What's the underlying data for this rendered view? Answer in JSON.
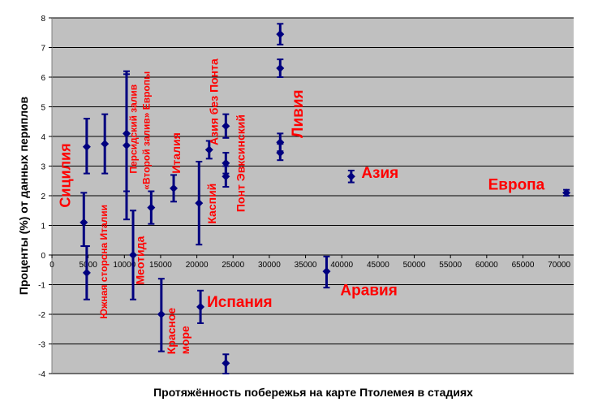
{
  "chart_data": {
    "type": "scatter",
    "title": "",
    "xlabel": "Протяжённость побережья на карте Птолемея в стадиях",
    "ylabel": "Проценты (%) от данных периплов",
    "xlim": [
      0,
      72000
    ],
    "ylim": [
      -4,
      8
    ],
    "x_ticks": [
      0,
      5000,
      10000,
      15000,
      20000,
      25000,
      30000,
      35000,
      40000,
      45000,
      50000,
      55000,
      60000,
      65000,
      70000
    ],
    "y_ticks": [
      -4,
      -3,
      -2,
      -1,
      0,
      1,
      2,
      3,
      4,
      5,
      6,
      7,
      8
    ],
    "grid": true,
    "background": "#c0c0c0",
    "gridline_color": "#000000",
    "series_color": "#00007f",
    "label_color": "#ff0000",
    "points": [
      {
        "x": 4400,
        "y": 1.1,
        "low": 0.3,
        "high": 2.1
      },
      {
        "x": 4800,
        "y": 3.65,
        "low": 2.75,
        "high": 4.6
      },
      {
        "x": 4800,
        "y": -0.6,
        "low": -1.5,
        "high": 0.3
      },
      {
        "x": 7300,
        "y": 3.75,
        "low": 2.75,
        "high": 4.75
      },
      {
        "x": 10300,
        "y": 4.1,
        "low": 2.15,
        "high": 6.1
      },
      {
        "x": 10300,
        "y": 3.7,
        "low": 1.2,
        "high": 6.2
      },
      {
        "x": 11200,
        "y": 0.0,
        "low": -1.5,
        "high": 1.5
      },
      {
        "x": 13700,
        "y": 1.6,
        "low": 1.05,
        "high": 2.15
      },
      {
        "x": 15100,
        "y": -2.0,
        "low": -3.25,
        "high": -0.8
      },
      {
        "x": 16800,
        "y": 2.25,
        "low": 1.8,
        "high": 2.7
      },
      {
        "x": 20300,
        "y": 1.75,
        "low": 0.35,
        "high": 3.15
      },
      {
        "x": 20500,
        "y": -1.75,
        "low": -2.3,
        "high": -1.2
      },
      {
        "x": 21700,
        "y": 3.55,
        "low": 3.25,
        "high": 3.85
      },
      {
        "x": 24000,
        "y": 4.35,
        "low": 3.95,
        "high": 4.75
      },
      {
        "x": 24000,
        "y": 3.1,
        "low": 2.75,
        "high": 3.45
      },
      {
        "x": 24000,
        "y": 2.65,
        "low": 2.3,
        "high": 3.0
      },
      {
        "x": 24000,
        "y": -3.65,
        "low": -4.0,
        "high": -3.35
      },
      {
        "x": 31500,
        "y": 7.45,
        "low": 7.1,
        "high": 7.8
      },
      {
        "x": 31500,
        "y": 6.3,
        "low": 6.0,
        "high": 6.6
      },
      {
        "x": 31500,
        "y": 3.8,
        "low": 3.5,
        "high": 4.1
      },
      {
        "x": 31500,
        "y": 3.45,
        "low": 3.2,
        "high": 3.75
      },
      {
        "x": 37900,
        "y": -0.55,
        "low": -1.1,
        "high": -0.05
      },
      {
        "x": 41300,
        "y": 2.65,
        "low": 2.45,
        "high": 2.85
      },
      {
        "x": 71000,
        "y": 2.1,
        "low": 2.0,
        "high": 2.2
      }
    ],
    "annotations": [
      {
        "text": "Сицилия",
        "x": 2500,
        "y": 1.6,
        "size": 18,
        "rotate": -90
      },
      {
        "text": "Южная сторона Италии",
        "x": 7600,
        "y": -2.15,
        "size": 12,
        "rotate": -90,
        "weight": "normal"
      },
      {
        "text": "Персидский залив",
        "x": 11700,
        "y": 2.75,
        "size": 12,
        "rotate": -90,
        "weight": "normal"
      },
      {
        "text": "«Второй залив» Европы",
        "x": 13500,
        "y": 2.2,
        "size": 12,
        "rotate": -90,
        "weight": "normal"
      },
      {
        "text": "Меотида",
        "x": 12700,
        "y": -1.0,
        "size": 14,
        "rotate": -90
      },
      {
        "text": "Италия",
        "x": 17700,
        "y": 2.75,
        "size": 14,
        "rotate": -90
      },
      {
        "text": "Красное",
        "x": 17000,
        "y": -3.35,
        "size": 14,
        "rotate": -90
      },
      {
        "text": "море",
        "x": 18900,
        "y": -3.35,
        "size": 14,
        "rotate": -90
      },
      {
        "text": "Каспий",
        "x": 22600,
        "y": 1.05,
        "size": 14,
        "rotate": -90
      },
      {
        "text": "Азия без Понта",
        "x": 22900,
        "y": 3.7,
        "size": 14,
        "rotate": -90
      },
      {
        "text": "Понт Эвксинский",
        "x": 26600,
        "y": 1.45,
        "size": 14,
        "rotate": -90
      },
      {
        "text": "Ливия",
        "x": 34600,
        "y": 3.95,
        "size": 19,
        "rotate": -90
      },
      {
        "text": "Испания",
        "x": 21400,
        "y": -1.75,
        "size": 19,
        "rotate": 0
      },
      {
        "text": "Азия",
        "x": 42700,
        "y": 2.6,
        "size": 19,
        "rotate": 0
      },
      {
        "text": "Аравия",
        "x": 39800,
        "y": -1.35,
        "size": 19,
        "rotate": 0
      },
      {
        "text": "Европа",
        "x": 60200,
        "y": 2.2,
        "size": 19,
        "rotate": 0
      }
    ]
  }
}
